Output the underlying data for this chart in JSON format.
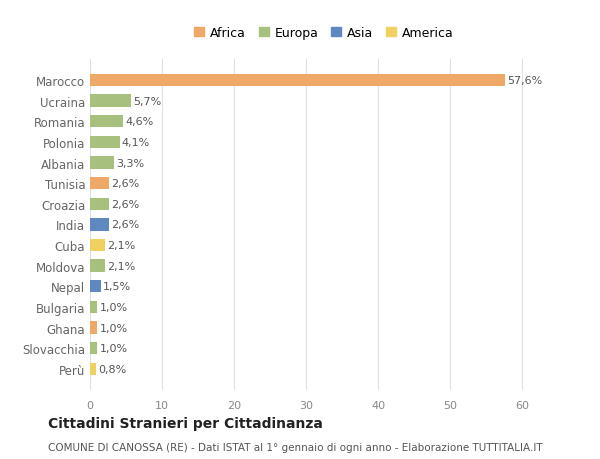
{
  "countries": [
    "Marocco",
    "Ucraina",
    "Romania",
    "Polonia",
    "Albania",
    "Tunisia",
    "Croazia",
    "India",
    "Cuba",
    "Moldova",
    "Nepal",
    "Bulgaria",
    "Ghana",
    "Slovacchia",
    "Perù"
  ],
  "values": [
    57.6,
    5.7,
    4.6,
    4.1,
    3.3,
    2.6,
    2.6,
    2.6,
    2.1,
    2.1,
    1.5,
    1.0,
    1.0,
    1.0,
    0.8
  ],
  "labels": [
    "57,6%",
    "5,7%",
    "4,6%",
    "4,1%",
    "3,3%",
    "2,6%",
    "2,6%",
    "2,6%",
    "2,1%",
    "2,1%",
    "1,5%",
    "1,0%",
    "1,0%",
    "1,0%",
    "0,8%"
  ],
  "continent": [
    "Africa",
    "Europa",
    "Europa",
    "Europa",
    "Europa",
    "Africa",
    "Europa",
    "Asia",
    "America",
    "Europa",
    "Asia",
    "Europa",
    "Africa",
    "Europa",
    "America"
  ],
  "colors": {
    "Africa": "#F0A868",
    "Europa": "#A8C07E",
    "Asia": "#6088C0",
    "America": "#F0D060"
  },
  "title": "Cittadini Stranieri per Cittadinanza",
  "subtitle": "COMUNE DI CANOSSA (RE) - Dati ISTAT al 1° gennaio di ogni anno - Elaborazione TUTTITALIA.IT",
  "xlim": [
    0,
    65
  ],
  "xticks": [
    0,
    10,
    20,
    30,
    40,
    50,
    60
  ],
  "background_color": "#ffffff",
  "grid_color": "#e0e0e0",
  "legend_order": [
    "Africa",
    "Europa",
    "Asia",
    "America"
  ]
}
